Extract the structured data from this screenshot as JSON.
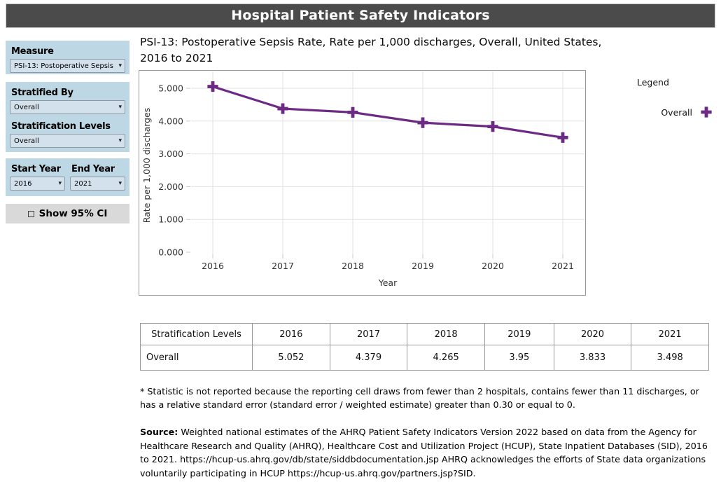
{
  "app": {
    "title": "Hospital Patient Safety Indicators"
  },
  "sidebar": {
    "measure": {
      "label": "Measure",
      "value": "PSI-13: Postoperative Sepsis ..."
    },
    "stratified_by": {
      "label": "Stratified By",
      "value": "Overall"
    },
    "stratification_levels": {
      "label": "Stratification Levels",
      "value": "Overall"
    },
    "start_year": {
      "label": "Start Year",
      "value": "2016"
    },
    "end_year": {
      "label": "End Year",
      "value": "2021"
    },
    "show_ci": {
      "label": "Show 95% CI",
      "checked": false
    }
  },
  "main": {
    "title_lines": {
      "line1": "PSI-13: Postoperative Sepsis Rate, Rate per 1,000 discharges, Overall, United States,",
      "line2": "2016 to 2021"
    },
    "legend": {
      "title": "Legend",
      "items": [
        {
          "label": "Overall",
          "color": "#6d2a84",
          "marker": "plus"
        }
      ]
    },
    "footnote": "* Statistic is not reported because the reporting cell draws from fewer than 2 hospitals, contains fewer than 11 discharges, or has a relative standard error (standard error / weighted estimate) greater than 0.30 or equal to 0.",
    "source_label": "Source:",
    "source_text": " Weighted national estimates of the AHRQ Patient Safety Indicators Version 2022 based on data from the Agency for Healthcare Research and Quality (AHRQ), Healthcare Cost and Utilization Project (HCUP), State Inpatient Databases (SID), 2016 to 2021. https://hcup-us.ahrq.gov/db/state/siddbdocumentation.jsp AHRQ acknowledges the efforts of State data organizations voluntarily participating in HCUP https://hcup-us.ahrq.gov/partners.jsp?SID."
  },
  "chart_data": {
    "type": "line",
    "x": [
      "2016",
      "2017",
      "2018",
      "2019",
      "2020",
      "2021"
    ],
    "series": [
      {
        "name": "Overall",
        "values": [
          5.052,
          4.379,
          4.265,
          3.95,
          3.833,
          3.498
        ],
        "color": "#6d2a84",
        "marker": "plus"
      }
    ],
    "xlabel": "Year",
    "ylabel": "Rate per 1,000 discharges",
    "ylim": [
      0,
      5.5
    ],
    "yticks": [
      0,
      1,
      2,
      3,
      4,
      5
    ],
    "ytick_labels": [
      "0.000",
      "1.000",
      "2.000",
      "3.000",
      "4.000",
      "5.000"
    ],
    "grid": true,
    "legend_position": "right"
  },
  "table": {
    "headers": [
      "Stratification Levels",
      "2016",
      "2017",
      "2018",
      "2019",
      "2020",
      "2021"
    ],
    "rows": [
      [
        "Overall",
        "5.052",
        "4.379",
        "4.265",
        "3.95",
        "3.833",
        "3.498"
      ]
    ]
  }
}
